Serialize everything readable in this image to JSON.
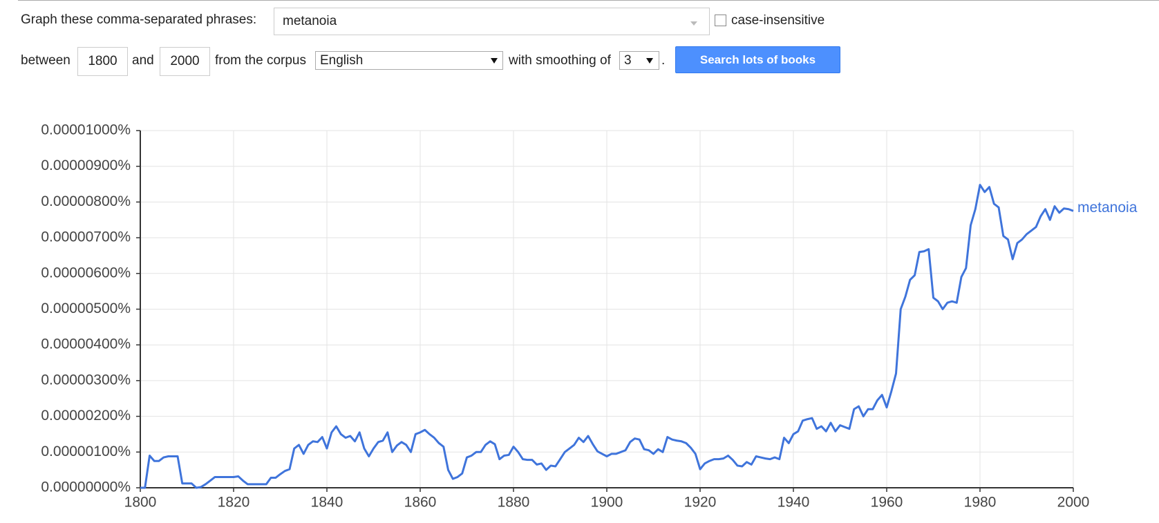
{
  "form": {
    "phrases_label": "Graph these comma-separated phrases:",
    "phrases": "metanoia",
    "case_label": "case-insensitive",
    "between": "between",
    "start": "1800",
    "and": "and",
    "end": "2000",
    "corpus_label": "from the corpus",
    "corpus": "English",
    "smoothing_label": "with smoothing of",
    "smoothing": "3",
    "period": ".",
    "button": "Search lots of books"
  },
  "chart_data": {
    "type": "line",
    "xlim": [
      1800,
      2000
    ],
    "xticks": [
      1800,
      1820,
      1840,
      1860,
      1880,
      1900,
      1920,
      1940,
      1960,
      1980,
      2000
    ],
    "ylim": [
      0,
      1e-05
    ],
    "yticks": [
      {
        "value": 0,
        "label": "0.00000000%"
      },
      {
        "value": 1e-06,
        "label": "0.00000100%"
      },
      {
        "value": 2e-06,
        "label": "0.00000200%"
      },
      {
        "value": 3e-06,
        "label": "0.00000300%"
      },
      {
        "value": 4e-06,
        "label": "0.00000400%"
      },
      {
        "value": 5e-06,
        "label": "0.00000500%"
      },
      {
        "value": 6e-06,
        "label": "0.00000600%"
      },
      {
        "value": 7e-06,
        "label": "0.00000700%"
      },
      {
        "value": 8e-06,
        "label": "0.00000800%"
      },
      {
        "value": 9e-06,
        "label": "0.00000900%"
      },
      {
        "value": 1e-05,
        "label": "0.00001000%"
      }
    ],
    "grid": true,
    "x": [
      1800,
      1801,
      1802,
      1803,
      1804,
      1805,
      1806,
      1807,
      1808,
      1809,
      1810,
      1811,
      1812,
      1813,
      1814,
      1815,
      1816,
      1817,
      1818,
      1819,
      1820,
      1821,
      1822,
      1823,
      1824,
      1825,
      1826,
      1827,
      1828,
      1829,
      1830,
      1831,
      1832,
      1833,
      1834,
      1835,
      1836,
      1837,
      1838,
      1839,
      1840,
      1841,
      1842,
      1843,
      1844,
      1845,
      1846,
      1847,
      1848,
      1849,
      1850,
      1851,
      1852,
      1853,
      1854,
      1855,
      1856,
      1857,
      1858,
      1859,
      1860,
      1861,
      1862,
      1863,
      1864,
      1865,
      1866,
      1867,
      1868,
      1869,
      1870,
      1871,
      1872,
      1873,
      1874,
      1875,
      1876,
      1877,
      1878,
      1879,
      1880,
      1881,
      1882,
      1883,
      1884,
      1885,
      1886,
      1887,
      1888,
      1889,
      1890,
      1891,
      1892,
      1893,
      1894,
      1895,
      1896,
      1897,
      1898,
      1899,
      1900,
      1901,
      1902,
      1903,
      1904,
      1905,
      1906,
      1907,
      1908,
      1909,
      1910,
      1911,
      1912,
      1913,
      1914,
      1915,
      1916,
      1917,
      1918,
      1919,
      1920,
      1921,
      1922,
      1923,
      1924,
      1925,
      1926,
      1927,
      1928,
      1929,
      1930,
      1931,
      1932,
      1933,
      1934,
      1935,
      1936,
      1937,
      1938,
      1939,
      1940,
      1941,
      1942,
      1943,
      1944,
      1945,
      1946,
      1947,
      1948,
      1949,
      1950,
      1951,
      1952,
      1953,
      1954,
      1955,
      1956,
      1957,
      1958,
      1959,
      1960,
      1961,
      1962,
      1963,
      1964,
      1965,
      1966,
      1967,
      1968,
      1969,
      1970,
      1971,
      1972,
      1973,
      1974,
      1975,
      1976,
      1977,
      1978,
      1979,
      1980,
      1981,
      1982,
      1983,
      1984,
      1985,
      1986,
      1987,
      1988,
      1989,
      1990,
      1991,
      1992,
      1993,
      1994,
      1995,
      1996,
      1997,
      1998,
      1999,
      2000
    ],
    "series": [
      {
        "name": "metanoia",
        "color": "#3f74db",
        "values": [
          0,
          0,
          9e-07,
          7.5e-07,
          7.5e-07,
          8.5e-07,
          8.8e-07,
          8.8e-07,
          8.8e-07,
          1.2e-07,
          1.2e-07,
          1.2e-07,
          0,
          2e-08,
          1e-07,
          2e-07,
          3e-07,
          3e-07,
          3e-07,
          3e-07,
          3e-07,
          3.2e-07,
          2e-07,
          1e-07,
          1e-07,
          1e-07,
          1e-07,
          1e-07,
          2.8e-07,
          2.8e-07,
          3.8e-07,
          4.7e-07,
          5.2e-07,
          1.1e-06,
          1.2e-06,
          9.5e-07,
          1.2e-06,
          1.3e-06,
          1.28e-06,
          1.42e-06,
          1.1e-06,
          1.55e-06,
          1.72e-06,
          1.5e-06,
          1.4e-06,
          1.45e-06,
          1.3e-06,
          1.55e-06,
          1.1e-06,
          8.8e-07,
          1.1e-06,
          1.28e-06,
          1.32e-06,
          1.55e-06,
          1e-06,
          1.18e-06,
          1.28e-06,
          1.2e-06,
          1e-06,
          1.5e-06,
          1.55e-06,
          1.62e-06,
          1.5e-06,
          1.4e-06,
          1.25e-06,
          1.15e-06,
          5e-07,
          2.5e-07,
          3e-07,
          4e-07,
          8.5e-07,
          9e-07,
          1e-06,
          1e-06,
          1.2e-06,
          1.3e-06,
          1.22e-06,
          8e-07,
          9e-07,
          9.2e-07,
          1.15e-06,
          1e-06,
          8e-07,
          7.8e-07,
          7.8e-07,
          6.5e-07,
          6.8e-07,
          5e-07,
          6.2e-07,
          6e-07,
          8e-07,
          1e-06,
          1.1e-06,
          1.2e-06,
          1.4e-06,
          1.28e-06,
          1.45e-06,
          1.22e-06,
          1.02e-06,
          9.5e-07,
          8.8e-07,
          9.5e-07,
          9.5e-07,
          1e-06,
          1.05e-06,
          1.28e-06,
          1.38e-06,
          1.35e-06,
          1.08e-06,
          1.05e-06,
          9.5e-07,
          1.08e-06,
          1e-06,
          1.42e-06,
          1.35e-06,
          1.32e-06,
          1.3e-06,
          1.25e-06,
          1.12e-06,
          9.5e-07,
          5.2e-07,
          6.8e-07,
          7.5e-07,
          8e-07,
          8e-07,
          8.2e-07,
          9e-07,
          7.8e-07,
          6.2e-07,
          6e-07,
          7.2e-07,
          6.5e-07,
          8.8e-07,
          8.5e-07,
          8.2e-07,
          8e-07,
          8.5e-07,
          8e-07,
          1.4e-06,
          1.25e-06,
          1.5e-06,
          1.58e-06,
          1.88e-06,
          1.92e-06,
          1.95e-06,
          1.65e-06,
          1.72e-06,
          1.58e-06,
          1.82e-06,
          1.58e-06,
          1.75e-06,
          1.7e-06,
          1.65e-06,
          2.2e-06,
          2.28e-06,
          2e-06,
          2.2e-06,
          2.2e-06,
          2.45e-06,
          2.6e-06,
          2.25e-06,
          2.7e-06,
          3.2e-06,
          5e-06,
          5.35e-06,
          5.82e-06,
          5.95e-06,
          6.6e-06,
          6.62e-06,
          6.68e-06,
          5.32e-06,
          5.22e-06,
          5e-06,
          5.18e-06,
          5.22e-06,
          5.18e-06,
          5.9e-06,
          6.15e-06,
          7.35e-06,
          7.8e-06,
          8.48e-06,
          8.28e-06,
          8.42e-06,
          7.95e-06,
          7.85e-06,
          7.05e-06,
          6.95e-06,
          6.4e-06,
          6.85e-06,
          6.95e-06,
          7.1e-06,
          7.2e-06,
          7.3e-06,
          7.6e-06,
          7.8e-06,
          7.5e-06,
          7.88e-06,
          7.7e-06,
          7.82e-06,
          7.8e-06,
          7.75e-06
        ]
      }
    ]
  }
}
